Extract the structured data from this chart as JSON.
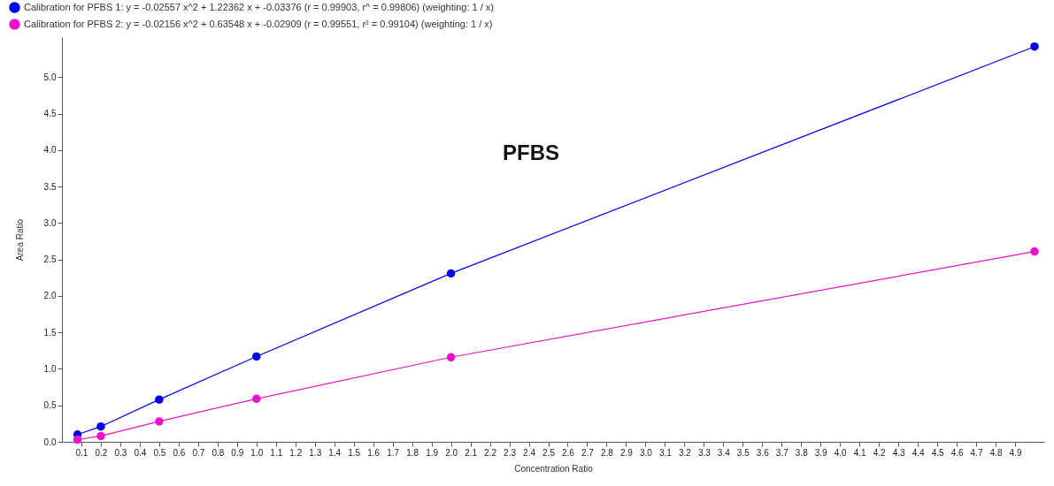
{
  "chart_data": {
    "type": "line",
    "xlabel": "Concentration Ratio",
    "ylabel": "Area Ratio",
    "annotations": [
      "PFBS"
    ],
    "xlim": [
      0,
      5.05
    ],
    "ylim": [
      0,
      5.55
    ],
    "xticks": [
      0.1,
      0.2,
      0.3,
      0.4,
      0.5,
      0.6,
      0.7,
      0.8,
      0.9,
      {
        "value": 1,
        "label": "1.0"
      },
      1.1,
      1.2,
      1.3,
      1.4,
      1.5,
      1.6,
      1.7,
      1.8,
      1.9,
      {
        "value": 2,
        "label": "2.0"
      },
      2.1,
      2.2,
      2.3,
      2.4,
      2.5,
      2.6,
      2.7,
      2.8,
      2.9,
      {
        "value": 3,
        "label": "3.0"
      },
      3.1,
      3.2,
      3.3,
      3.4,
      3.5,
      3.6,
      3.7,
      3.8,
      3.9,
      {
        "value": 4,
        "label": "4.0"
      },
      4.1,
      4.2,
      4.3,
      4.4,
      4.5,
      4.6,
      4.7,
      4.8,
      4.9
    ],
    "yticks": [
      {
        "value": 0,
        "label": "0.0"
      },
      0.5,
      {
        "value": 1,
        "label": "1.0"
      },
      1.5,
      {
        "value": 2,
        "label": "2.0"
      },
      2.5,
      {
        "value": 3,
        "label": "3.0"
      },
      3.5,
      {
        "value": 4,
        "label": "4.0"
      },
      4.5,
      {
        "value": 5,
        "label": "5.0"
      }
    ],
    "x": [
      0.08,
      0.2,
      0.5,
      1,
      2,
      5
    ],
    "marker": "circle",
    "legend": "top left",
    "grid": false,
    "series": [
      {
        "name": "Calibration for PFBS 1: y = -0.02557 x^2 + 1.22362 x + -0.03376 (r = 0.99903, r^ = 0.99806)  (weighting: 1 / x)",
        "color": "#0000ee",
        "values": [
          0.1,
          0.21,
          0.58,
          1.17,
          2.31,
          5.42
        ]
      },
      {
        "name": "Calibration for PFBS 2: y = -0.02156 x^2 + 0.63548 x + -0.02909 (r = 0.99551, r² = 0.99104)  (weighting: 1 / x)",
        "color": "#ee11cc",
        "values": [
          0.03,
          0.08,
          0.28,
          0.59,
          1.16,
          2.61
        ]
      }
    ]
  }
}
